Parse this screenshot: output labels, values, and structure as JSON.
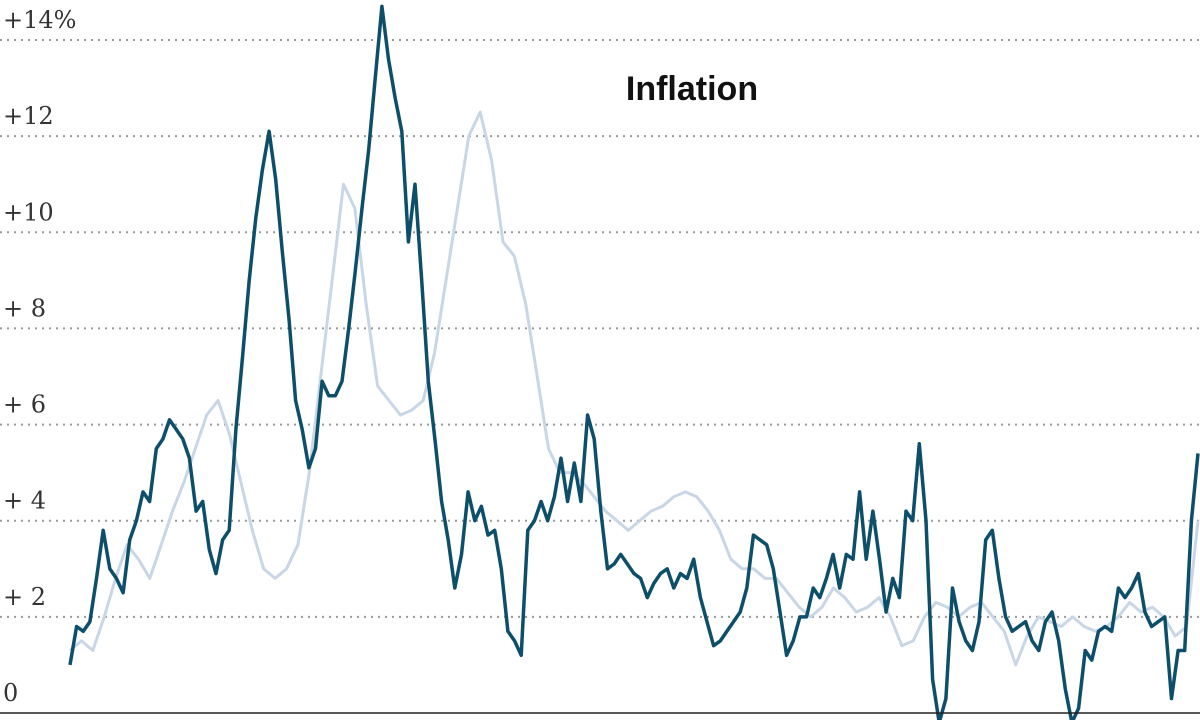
{
  "chart_data": {
    "type": "line",
    "title": "Inflation",
    "series": [
      {
        "name": null,
        "color": "#c9d6e6",
        "values": [
          1.3,
          1.5,
          1.3,
          2.0,
          2.8,
          3.5,
          3.2,
          2.8,
          3.5,
          4.2,
          4.8,
          5.5,
          6.2,
          6.5,
          5.8,
          4.8,
          3.8,
          3.0,
          2.8,
          3.0,
          3.5,
          5.0,
          7.0,
          9.0,
          11.0,
          10.5,
          8.5,
          6.8,
          6.5,
          6.2,
          6.3,
          6.5,
          7.5,
          9.0,
          10.5,
          12.0,
          12.5,
          11.5,
          9.8,
          9.5,
          8.5,
          7.0,
          5.5,
          5.0,
          5.0,
          4.8,
          4.5,
          4.2,
          4.0,
          3.8,
          4.0,
          4.2,
          4.3,
          4.5,
          4.6,
          4.5,
          4.2,
          3.8,
          3.2,
          3.0,
          3.0,
          2.8,
          2.8,
          2.5,
          2.2,
          2.0,
          2.2,
          2.6,
          2.4,
          2.1,
          2.2,
          2.4,
          2.0,
          1.4,
          1.5,
          2.0,
          2.3,
          2.2,
          2.0,
          2.2,
          2.3,
          2.0,
          1.7,
          1.0,
          1.6,
          2.0,
          1.9,
          1.8,
          2.0,
          1.8,
          1.7,
          1.8,
          2.0,
          2.3,
          2.1,
          2.2,
          2.0,
          1.6,
          1.8,
          4.0
        ]
      },
      {
        "name": null,
        "color": "#0d4f6b",
        "values": [
          1.0,
          1.8,
          1.7,
          1.9,
          2.8,
          3.8,
          3.0,
          2.8,
          2.5,
          3.6,
          4.0,
          4.6,
          4.4,
          5.5,
          5.7,
          6.1,
          5.9,
          5.7,
          5.3,
          4.2,
          4.4,
          3.4,
          2.9,
          3.6,
          3.8,
          5.9,
          7.4,
          9.0,
          10.3,
          11.3,
          12.1,
          11.1,
          9.6,
          8.2,
          6.5,
          5.9,
          5.1,
          5.5,
          6.9,
          6.6,
          6.6,
          6.9,
          8.0,
          9.2,
          10.5,
          11.7,
          13.2,
          14.7,
          13.6,
          12.8,
          12.1,
          9.8,
          11.0,
          9.0,
          6.9,
          5.7,
          4.4,
          3.6,
          2.6,
          3.3,
          4.6,
          4.0,
          4.3,
          3.7,
          3.8,
          3.0,
          1.7,
          1.5,
          1.2,
          3.8,
          4.0,
          4.4,
          4.0,
          4.5,
          5.3,
          4.4,
          5.2,
          4.4,
          6.2,
          5.7,
          4.2,
          3.0,
          3.1,
          3.3,
          3.1,
          2.9,
          2.8,
          2.4,
          2.7,
          2.9,
          3.0,
          2.6,
          2.9,
          2.8,
          3.2,
          2.4,
          1.9,
          1.4,
          1.5,
          1.7,
          1.9,
          2.1,
          2.6,
          3.7,
          3.6,
          3.5,
          3.0,
          2.1,
          1.2,
          1.5,
          2.0,
          2.0,
          2.6,
          2.4,
          2.8,
          3.3,
          2.6,
          3.3,
          3.2,
          4.6,
          3.2,
          4.2,
          3.2,
          2.1,
          2.8,
          2.4,
          4.2,
          4.0,
          5.6,
          4.0,
          0.7,
          -0.2,
          0.3,
          2.6,
          1.9,
          1.5,
          1.3,
          1.9,
          3.6,
          3.8,
          2.8,
          2.0,
          1.7,
          1.8,
          1.9,
          1.5,
          1.3,
          1.9,
          2.1,
          1.5,
          0.5,
          -0.2,
          0.1,
          1.3,
          1.1,
          1.7,
          1.8,
          1.7,
          2.6,
          2.4,
          2.6,
          2.9,
          2.1,
          1.8,
          1.9,
          2.0,
          0.3,
          1.3,
          1.3,
          4.0,
          5.4
        ]
      }
    ],
    "ylim": [
      0,
      14
    ],
    "yticks": [
      0,
      {
        "value": 2,
        "label": "+ 2"
      },
      {
        "value": 4,
        "label": "+ 4"
      },
      {
        "value": 6,
        "label": "+ 6"
      },
      {
        "value": 8,
        "label": "+ 8"
      },
      {
        "value": 10,
        "label": "+10"
      },
      {
        "value": 12,
        "label": "+12"
      },
      {
        "value": 14,
        "label": "+14%"
      }
    ],
    "grid": true
  }
}
